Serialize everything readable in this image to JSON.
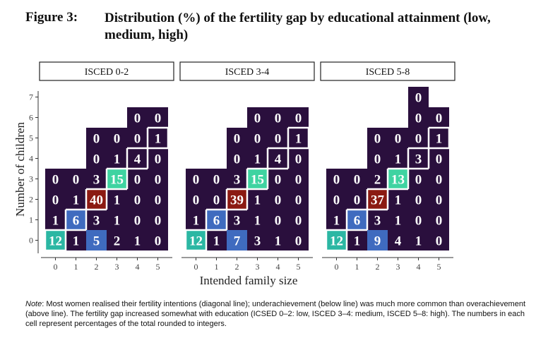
{
  "figure": {
    "label": "Figure 3:",
    "title": "Distribution (%) of the fertility gap by educational attainment (low, medium, high)"
  },
  "note": {
    "label": "Note",
    "text": ": Most women realised their fertility intentions (diagonal line); underachievement (below line) was much more common than overachievement (above line). The fertility gap increased somewhat with education (ICSED 0–2: low, ISCED 3–4: medium, ISCED 5–8: high). The numbers in each cell represent percentages of the total rounded to integers."
  },
  "colors": {
    "low": "#2a0f3d",
    "mid": "#3f6bbf",
    "teal": "#2bb7a3",
    "mint": "#3fd3a1",
    "high": "#8b1a12",
    "separator": "#ffffff",
    "text": "#ffffff",
    "axis": "#333333"
  },
  "chart_data": {
    "type": "heatmap",
    "xlabel": "Intended family size",
    "ylabel": "Number of children",
    "x_ticks": [
      "0",
      "1",
      "2",
      "3",
      "4",
      "5"
    ],
    "y_ticks": [
      "0",
      "1",
      "2",
      "3",
      "4",
      "5",
      "6",
      "7"
    ],
    "legend": "none",
    "panels": [
      {
        "label": "ISCED 0-2",
        "cells": [
          {
            "x": 0,
            "y": 0,
            "value": 12
          },
          {
            "x": 1,
            "y": 0,
            "value": 1
          },
          {
            "x": 2,
            "y": 0,
            "value": 5
          },
          {
            "x": 3,
            "y": 0,
            "value": 2
          },
          {
            "x": 4,
            "y": 0,
            "value": 1
          },
          {
            "x": 5,
            "y": 0,
            "value": 0
          },
          {
            "x": 0,
            "y": 1,
            "value": 1
          },
          {
            "x": 1,
            "y": 1,
            "value": 6
          },
          {
            "x": 2,
            "y": 1,
            "value": 3
          },
          {
            "x": 3,
            "y": 1,
            "value": 1
          },
          {
            "x": 4,
            "y": 1,
            "value": 0
          },
          {
            "x": 5,
            "y": 1,
            "value": 0
          },
          {
            "x": 0,
            "y": 2,
            "value": 0
          },
          {
            "x": 1,
            "y": 2,
            "value": 1
          },
          {
            "x": 2,
            "y": 2,
            "value": 40
          },
          {
            "x": 3,
            "y": 2,
            "value": 1
          },
          {
            "x": 4,
            "y": 2,
            "value": 0
          },
          {
            "x": 5,
            "y": 2,
            "value": 0
          },
          {
            "x": 0,
            "y": 3,
            "value": 0
          },
          {
            "x": 1,
            "y": 3,
            "value": 0
          },
          {
            "x": 2,
            "y": 3,
            "value": 3
          },
          {
            "x": 3,
            "y": 3,
            "value": 15
          },
          {
            "x": 4,
            "y": 3,
            "value": 0
          },
          {
            "x": 5,
            "y": 3,
            "value": 0
          },
          {
            "x": 2,
            "y": 4,
            "value": 0
          },
          {
            "x": 3,
            "y": 4,
            "value": 1
          },
          {
            "x": 4,
            "y": 4,
            "value": 4
          },
          {
            "x": 5,
            "y": 4,
            "value": 0
          },
          {
            "x": 2,
            "y": 5,
            "value": 0
          },
          {
            "x": 3,
            "y": 5,
            "value": 0
          },
          {
            "x": 4,
            "y": 5,
            "value": 0
          },
          {
            "x": 5,
            "y": 5,
            "value": 1
          },
          {
            "x": 4,
            "y": 6,
            "value": 0
          },
          {
            "x": 5,
            "y": 6,
            "value": 0
          }
        ]
      },
      {
        "label": "ISCED 3-4",
        "cells": [
          {
            "x": 0,
            "y": 0,
            "value": 12
          },
          {
            "x": 1,
            "y": 0,
            "value": 1
          },
          {
            "x": 2,
            "y": 0,
            "value": 7
          },
          {
            "x": 3,
            "y": 0,
            "value": 3
          },
          {
            "x": 4,
            "y": 0,
            "value": 1
          },
          {
            "x": 5,
            "y": 0,
            "value": 0
          },
          {
            "x": 0,
            "y": 1,
            "value": 1
          },
          {
            "x": 1,
            "y": 1,
            "value": 6
          },
          {
            "x": 2,
            "y": 1,
            "value": 3
          },
          {
            "x": 3,
            "y": 1,
            "value": 1
          },
          {
            "x": 4,
            "y": 1,
            "value": 0
          },
          {
            "x": 5,
            "y": 1,
            "value": 0
          },
          {
            "x": 0,
            "y": 2,
            "value": 0
          },
          {
            "x": 1,
            "y": 2,
            "value": 0
          },
          {
            "x": 2,
            "y": 2,
            "value": 39
          },
          {
            "x": 3,
            "y": 2,
            "value": 1
          },
          {
            "x": 4,
            "y": 2,
            "value": 0
          },
          {
            "x": 5,
            "y": 2,
            "value": 0
          },
          {
            "x": 0,
            "y": 3,
            "value": 0
          },
          {
            "x": 1,
            "y": 3,
            "value": 0
          },
          {
            "x": 2,
            "y": 3,
            "value": 3
          },
          {
            "x": 3,
            "y": 3,
            "value": 15
          },
          {
            "x": 4,
            "y": 3,
            "value": 0
          },
          {
            "x": 5,
            "y": 3,
            "value": 0
          },
          {
            "x": 2,
            "y": 4,
            "value": 0
          },
          {
            "x": 3,
            "y": 4,
            "value": 1
          },
          {
            "x": 4,
            "y": 4,
            "value": 4
          },
          {
            "x": 5,
            "y": 4,
            "value": 0
          },
          {
            "x": 2,
            "y": 5,
            "value": 0
          },
          {
            "x": 3,
            "y": 5,
            "value": 0
          },
          {
            "x": 4,
            "y": 5,
            "value": 0
          },
          {
            "x": 5,
            "y": 5,
            "value": 1
          },
          {
            "x": 3,
            "y": 6,
            "value": 0
          },
          {
            "x": 4,
            "y": 6,
            "value": 0
          },
          {
            "x": 5,
            "y": 6,
            "value": 0
          }
        ]
      },
      {
        "label": "ISCED 5-8",
        "cells": [
          {
            "x": 0,
            "y": 0,
            "value": 12
          },
          {
            "x": 1,
            "y": 0,
            "value": 1
          },
          {
            "x": 2,
            "y": 0,
            "value": 9
          },
          {
            "x": 3,
            "y": 0,
            "value": 4
          },
          {
            "x": 4,
            "y": 0,
            "value": 1
          },
          {
            "x": 5,
            "y": 0,
            "value": 0
          },
          {
            "x": 0,
            "y": 1,
            "value": 1
          },
          {
            "x": 1,
            "y": 1,
            "value": 6
          },
          {
            "x": 2,
            "y": 1,
            "value": 3
          },
          {
            "x": 3,
            "y": 1,
            "value": 1
          },
          {
            "x": 4,
            "y": 1,
            "value": 0
          },
          {
            "x": 5,
            "y": 1,
            "value": 0
          },
          {
            "x": 0,
            "y": 2,
            "value": 0
          },
          {
            "x": 1,
            "y": 2,
            "value": 0
          },
          {
            "x": 2,
            "y": 2,
            "value": 37
          },
          {
            "x": 3,
            "y": 2,
            "value": 1
          },
          {
            "x": 4,
            "y": 2,
            "value": 0
          },
          {
            "x": 5,
            "y": 2,
            "value": 0
          },
          {
            "x": 0,
            "y": 3,
            "value": 0
          },
          {
            "x": 1,
            "y": 3,
            "value": 0
          },
          {
            "x": 2,
            "y": 3,
            "value": 2
          },
          {
            "x": 3,
            "y": 3,
            "value": 13
          },
          {
            "x": 4,
            "y": 3,
            "value": 0
          },
          {
            "x": 5,
            "y": 3,
            "value": 0
          },
          {
            "x": 2,
            "y": 4,
            "value": 0
          },
          {
            "x": 3,
            "y": 4,
            "value": 1
          },
          {
            "x": 4,
            "y": 4,
            "value": 3
          },
          {
            "x": 5,
            "y": 4,
            "value": 0
          },
          {
            "x": 2,
            "y": 5,
            "value": 0
          },
          {
            "x": 3,
            "y": 5,
            "value": 0
          },
          {
            "x": 4,
            "y": 5,
            "value": 0
          },
          {
            "x": 5,
            "y": 5,
            "value": 1
          },
          {
            "x": 4,
            "y": 6,
            "value": 0
          },
          {
            "x": 5,
            "y": 6,
            "value": 0
          },
          {
            "x": 4,
            "y": 7,
            "value": 0
          }
        ]
      }
    ]
  }
}
